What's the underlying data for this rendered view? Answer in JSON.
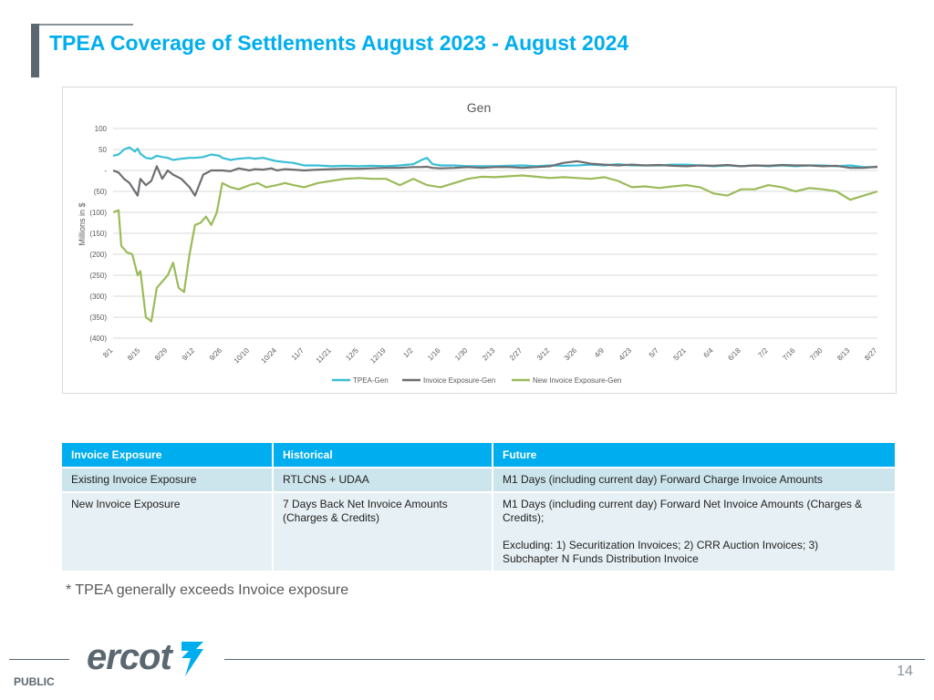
{
  "header": {
    "title": "TPEA Coverage of Settlements August 2023 - August 2024"
  },
  "chart_data": {
    "type": "line",
    "title": "Gen",
    "xlabel": "",
    "ylabel": "Millions in $",
    "ylim": [
      -400,
      100
    ],
    "y_ticks": [
      100,
      50,
      0,
      -50,
      -100,
      -150,
      -200,
      -250,
      -300,
      -350,
      -400
    ],
    "y_tick_labels": [
      "100",
      "50",
      "-",
      "(50)",
      "(100)",
      "(150)",
      "(200)",
      "(250)",
      "(300)",
      "(350)",
      "(400)"
    ],
    "categories": [
      "8/1",
      "8/15",
      "8/29",
      "9/12",
      "9/26",
      "10/10",
      "10/24",
      "11/7",
      "11/21",
      "12/5",
      "12/19",
      "1/2",
      "1/16",
      "1/30",
      "2/13",
      "2/27",
      "3/12",
      "3/26",
      "4/9",
      "4/23",
      "5/7",
      "5/21",
      "6/4",
      "6/18",
      "7/2",
      "7/16",
      "7/30",
      "8/13",
      "8/27"
    ],
    "grid": true,
    "legend_position": "bottom",
    "series": [
      {
        "name": "TPEA-Gen",
        "color": "#3bbfd6",
        "x": [
          0,
          0.2,
          0.4,
          0.6,
          0.8,
          0.9,
          1,
          1.2,
          1.4,
          1.6,
          1.8,
          2,
          2.2,
          2.5,
          2.8,
          3,
          3.3,
          3.6,
          3.9,
          4,
          4.3,
          4.6,
          5,
          5.2,
          5.5,
          5.8,
          6,
          6.3,
          6.6,
          7,
          7.5,
          8,
          8.5,
          9,
          9.5,
          10,
          10.5,
          11,
          11.3,
          11.5,
          11.7,
          12,
          12.5,
          13,
          13.5,
          14,
          14.5,
          15,
          15.5,
          16,
          16.5,
          17,
          17.5,
          18,
          18.5,
          19,
          19.5,
          20,
          20.5,
          21,
          21.5,
          22,
          22.5,
          23,
          23.5,
          24,
          24.5,
          25,
          25.5,
          26,
          26.5,
          27,
          27.5,
          28
        ],
        "values": [
          35,
          38,
          50,
          55,
          45,
          52,
          40,
          30,
          28,
          35,
          32,
          30,
          25,
          28,
          30,
          30,
          32,
          38,
          35,
          30,
          25,
          28,
          30,
          28,
          30,
          25,
          22,
          20,
          18,
          12,
          12,
          10,
          11,
          10,
          11,
          10,
          12,
          15,
          25,
          30,
          15,
          12,
          12,
          10,
          10,
          10,
          11,
          12,
          10,
          12,
          11,
          12,
          14,
          12,
          15,
          12,
          12,
          12,
          14,
          14,
          12,
          10,
          12,
          10,
          12,
          10,
          12,
          10,
          12,
          12,
          10,
          12,
          8,
          8
        ]
      },
      {
        "name": "Invoice Exposure-Gen",
        "color": "#6d6e71",
        "x": [
          0,
          0.2,
          0.4,
          0.6,
          0.8,
          0.9,
          1,
          1.2,
          1.4,
          1.6,
          1.8,
          2,
          2.2,
          2.5,
          2.8,
          3,
          3.3,
          3.6,
          3.9,
          4,
          4.3,
          4.6,
          5,
          5.2,
          5.5,
          5.8,
          6,
          6.3,
          6.6,
          7,
          7.5,
          8,
          8.5,
          9,
          9.5,
          10,
          10.5,
          11,
          11.3,
          11.5,
          11.7,
          12,
          12.5,
          13,
          13.5,
          14,
          14.5,
          15,
          15.5,
          16,
          16.5,
          17,
          17.5,
          18,
          18.5,
          19,
          19.5,
          20,
          20.5,
          21,
          21.5,
          22,
          22.5,
          23,
          23.5,
          24,
          24.5,
          25,
          25.5,
          26,
          26.5,
          27,
          27.5,
          28
        ],
        "values": [
          0,
          -5,
          -20,
          -30,
          -50,
          -60,
          -20,
          -35,
          -25,
          10,
          -20,
          0,
          -10,
          -20,
          -40,
          -60,
          -10,
          0,
          0,
          0,
          -2,
          5,
          0,
          3,
          2,
          5,
          0,
          3,
          2,
          0,
          2,
          3,
          4,
          4,
          5,
          6,
          6,
          8,
          8,
          9,
          6,
          5,
          6,
          8,
          6,
          8,
          8,
          6,
          8,
          10,
          18,
          22,
          16,
          14,
          12,
          14,
          12,
          13,
          11,
          10,
          12,
          11,
          13,
          10,
          12,
          11,
          13,
          12,
          12,
          10,
          11,
          6,
          6,
          9
        ]
      },
      {
        "name": "New Invoice Exposure-Gen",
        "color": "#9bbb59",
        "x": [
          0,
          0.2,
          0.3,
          0.5,
          0.7,
          0.9,
          1,
          1.2,
          1.4,
          1.6,
          1.8,
          2,
          2.2,
          2.4,
          2.6,
          2.8,
          3,
          3.2,
          3.4,
          3.6,
          3.8,
          4,
          4.3,
          4.6,
          5,
          5.3,
          5.6,
          6,
          6.3,
          6.6,
          7,
          7.5,
          8,
          8.5,
          9,
          9.5,
          10,
          10.5,
          11,
          11.5,
          12,
          12.5,
          13,
          13.5,
          14,
          14.5,
          15,
          15.5,
          16,
          16.5,
          17,
          17.5,
          18,
          18.5,
          19,
          19.5,
          20,
          20.5,
          21,
          21.5,
          22,
          22.5,
          23,
          23.5,
          24,
          24.5,
          25,
          25.5,
          26,
          26.5,
          27,
          27.5,
          28
        ],
        "values": [
          -100,
          -95,
          -180,
          -195,
          -200,
          -250,
          -240,
          -350,
          -360,
          -280,
          -265,
          -250,
          -220,
          -280,
          -290,
          -200,
          -130,
          -125,
          -110,
          -130,
          -100,
          -30,
          -40,
          -45,
          -35,
          -30,
          -40,
          -35,
          -30,
          -35,
          -40,
          -30,
          -25,
          -20,
          -18,
          -20,
          -20,
          -35,
          -20,
          -35,
          -40,
          -30,
          -20,
          -15,
          -16,
          -14,
          -12,
          -15,
          -18,
          -16,
          -18,
          -20,
          -16,
          -25,
          -40,
          -38,
          -42,
          -38,
          -35,
          -40,
          -55,
          -60,
          -45,
          -45,
          -35,
          -40,
          -50,
          -42,
          -45,
          -50,
          -70,
          -60,
          -50
        ]
      }
    ]
  },
  "table": {
    "headers": [
      "Invoice Exposure",
      "Historical",
      "Future"
    ],
    "rows": [
      [
        "Existing Invoice Exposure",
        "RTLCNS + UDAA",
        "M1 Days (including current day)  Forward Charge Invoice Amounts"
      ],
      [
        "New Invoice Exposure",
        "7 Days Back Net Invoice Amounts",
        "M1 Days (including current day) Forward Net Invoice Amounts (Charges &"
      ]
    ],
    "row2_hist_line2": "(Charges & Credits)",
    "row2_future_line2": "Credits);",
    "row2_future_line3": "Excluding: 1) Securitization Invoices; 2) CRR Auction Invoices; 3)",
    "row2_future_line4": "Subchapter N Funds Distribution Invoice"
  },
  "note": "* TPEA generally exceeds Invoice exposure",
  "footer": {
    "logo_text": "ercot",
    "classification": "PUBLIC",
    "page_number": "14",
    "logo_color": "#00aeef"
  }
}
